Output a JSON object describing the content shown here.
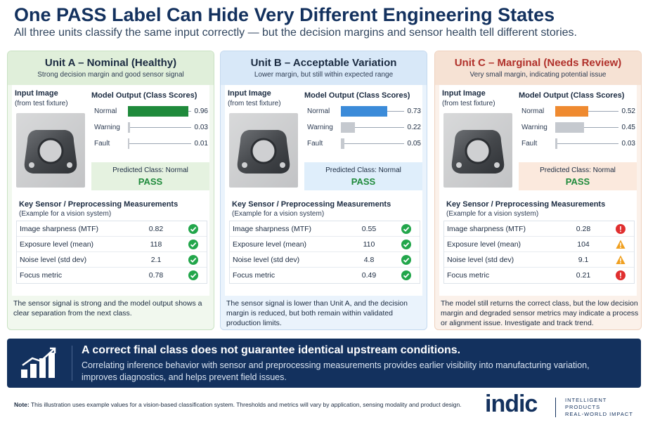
{
  "header": {
    "title": "One PASS Label Can Hide Very Different Engineering States",
    "subtitle": "All three units classify the same input correctly — but the decision margins and sensor health tell different stories."
  },
  "colors": {
    "navy": "#13315e",
    "pass_green": "#1f8a3b",
    "bar_green": "#1f8a3b",
    "bar_blue": "#3b8bd9",
    "bar_orange": "#ef8a30",
    "bar_gray": "#c5c9cf",
    "check": "#22a64b",
    "warn": "#f0a020",
    "error": "#e02f2f"
  },
  "labels": {
    "input_image": "Input Image",
    "input_image_sub": "(from test fixture)",
    "model_output": "Model Output (Class Scores)",
    "key_measurements": "Key Sensor / Preprocessing Measurements",
    "key_measurements_sub": "(Example for a vision system)"
  },
  "units": [
    {
      "title": "Unit A – Nominal (Healthy)",
      "subtitle": "Strong decision margin and good sensor signal",
      "scores": [
        {
          "name": "Normal",
          "value": "0.96",
          "fraction": 0.96,
          "color": "#1f8a3b"
        },
        {
          "name": "Warning",
          "value": "0.03",
          "fraction": 0.03,
          "color": "#c5c9cf"
        },
        {
          "name": "Fault",
          "value": "0.01",
          "fraction": 0.01,
          "color": "#c5c9cf"
        }
      ],
      "predicted_label": "Predicted Class: Normal",
      "result": "PASS",
      "metrics": [
        {
          "name": "Image sharpness (MTF)",
          "value": "0.82",
          "status": "ok"
        },
        {
          "name": "Exposure level (mean)",
          "value": "118",
          "status": "ok"
        },
        {
          "name": "Noise level (std dev)",
          "value": "2.1",
          "status": "ok"
        },
        {
          "name": "Focus metric",
          "value": "0.78",
          "status": "ok"
        }
      ],
      "footer": "The sensor signal is strong and the model output shows a clear separation from the next class."
    },
    {
      "title": "Unit B – Acceptable Variation",
      "subtitle": "Lower margin, but still within expected range",
      "scores": [
        {
          "name": "Normal",
          "value": "0.73",
          "fraction": 0.73,
          "color": "#3b8bd9"
        },
        {
          "name": "Warning",
          "value": "0.22",
          "fraction": 0.22,
          "color": "#c5c9cf"
        },
        {
          "name": "Fault",
          "value": "0.05",
          "fraction": 0.05,
          "color": "#c5c9cf"
        }
      ],
      "predicted_label": "Predicted Class: Normal",
      "result": "PASS",
      "metrics": [
        {
          "name": "Image sharpness (MTF)",
          "value": "0.55",
          "status": "ok"
        },
        {
          "name": "Exposure level (mean)",
          "value": "110",
          "status": "ok"
        },
        {
          "name": "Noise level (std dev)",
          "value": "4.8",
          "status": "ok"
        },
        {
          "name": "Focus metric",
          "value": "0.49",
          "status": "ok"
        }
      ],
      "footer": "The sensor signal is lower than Unit A, and the decision margin is reduced, but both remain within validated production limits."
    },
    {
      "title": "Unit C – Marginal (Needs Review)",
      "subtitle": "Very small margin, indicating potential issue",
      "scores": [
        {
          "name": "Normal",
          "value": "0.52",
          "fraction": 0.52,
          "color": "#ef8a30"
        },
        {
          "name": "Warning",
          "value": "0.45",
          "fraction": 0.45,
          "color": "#c5c9cf"
        },
        {
          "name": "Fault",
          "value": "0.03",
          "fraction": 0.03,
          "color": "#c5c9cf"
        }
      ],
      "predicted_label": "Predicted Class: Normal",
      "result": "PASS",
      "metrics": [
        {
          "name": "Image sharpness (MTF)",
          "value": "0.28",
          "status": "error"
        },
        {
          "name": "Exposure level (mean)",
          "value": "104",
          "status": "warn"
        },
        {
          "name": "Noise level (std dev)",
          "value": "9.1",
          "status": "warn"
        },
        {
          "name": "Focus metric",
          "value": "0.21",
          "status": "error"
        }
      ],
      "footer": "The model still returns the correct class, but the low decision margin and degraded sensor metrics may indicate a process or alignment issue. Investigate and track trend."
    }
  ],
  "banner": {
    "icon": "bar-chart-trend-icon",
    "title": "A correct final class does not guarantee identical upstream conditions.",
    "text": "Correlating inference behavior with sensor and preprocessing measurements provides earlier visibility into manufacturing variation, improves diagnostics, and helps prevent field issues."
  },
  "note": {
    "label": "Note:",
    "text": " This illustration uses example values for a vision-based classification system. Thresholds and metrics will vary by application, sensing modality and product design."
  },
  "brand": {
    "logo": "indic",
    "tagline_1": "INTELLIGENT",
    "tagline_2": "PRODUCTS",
    "tagline_3": "REAL-WORLD IMPACT"
  }
}
